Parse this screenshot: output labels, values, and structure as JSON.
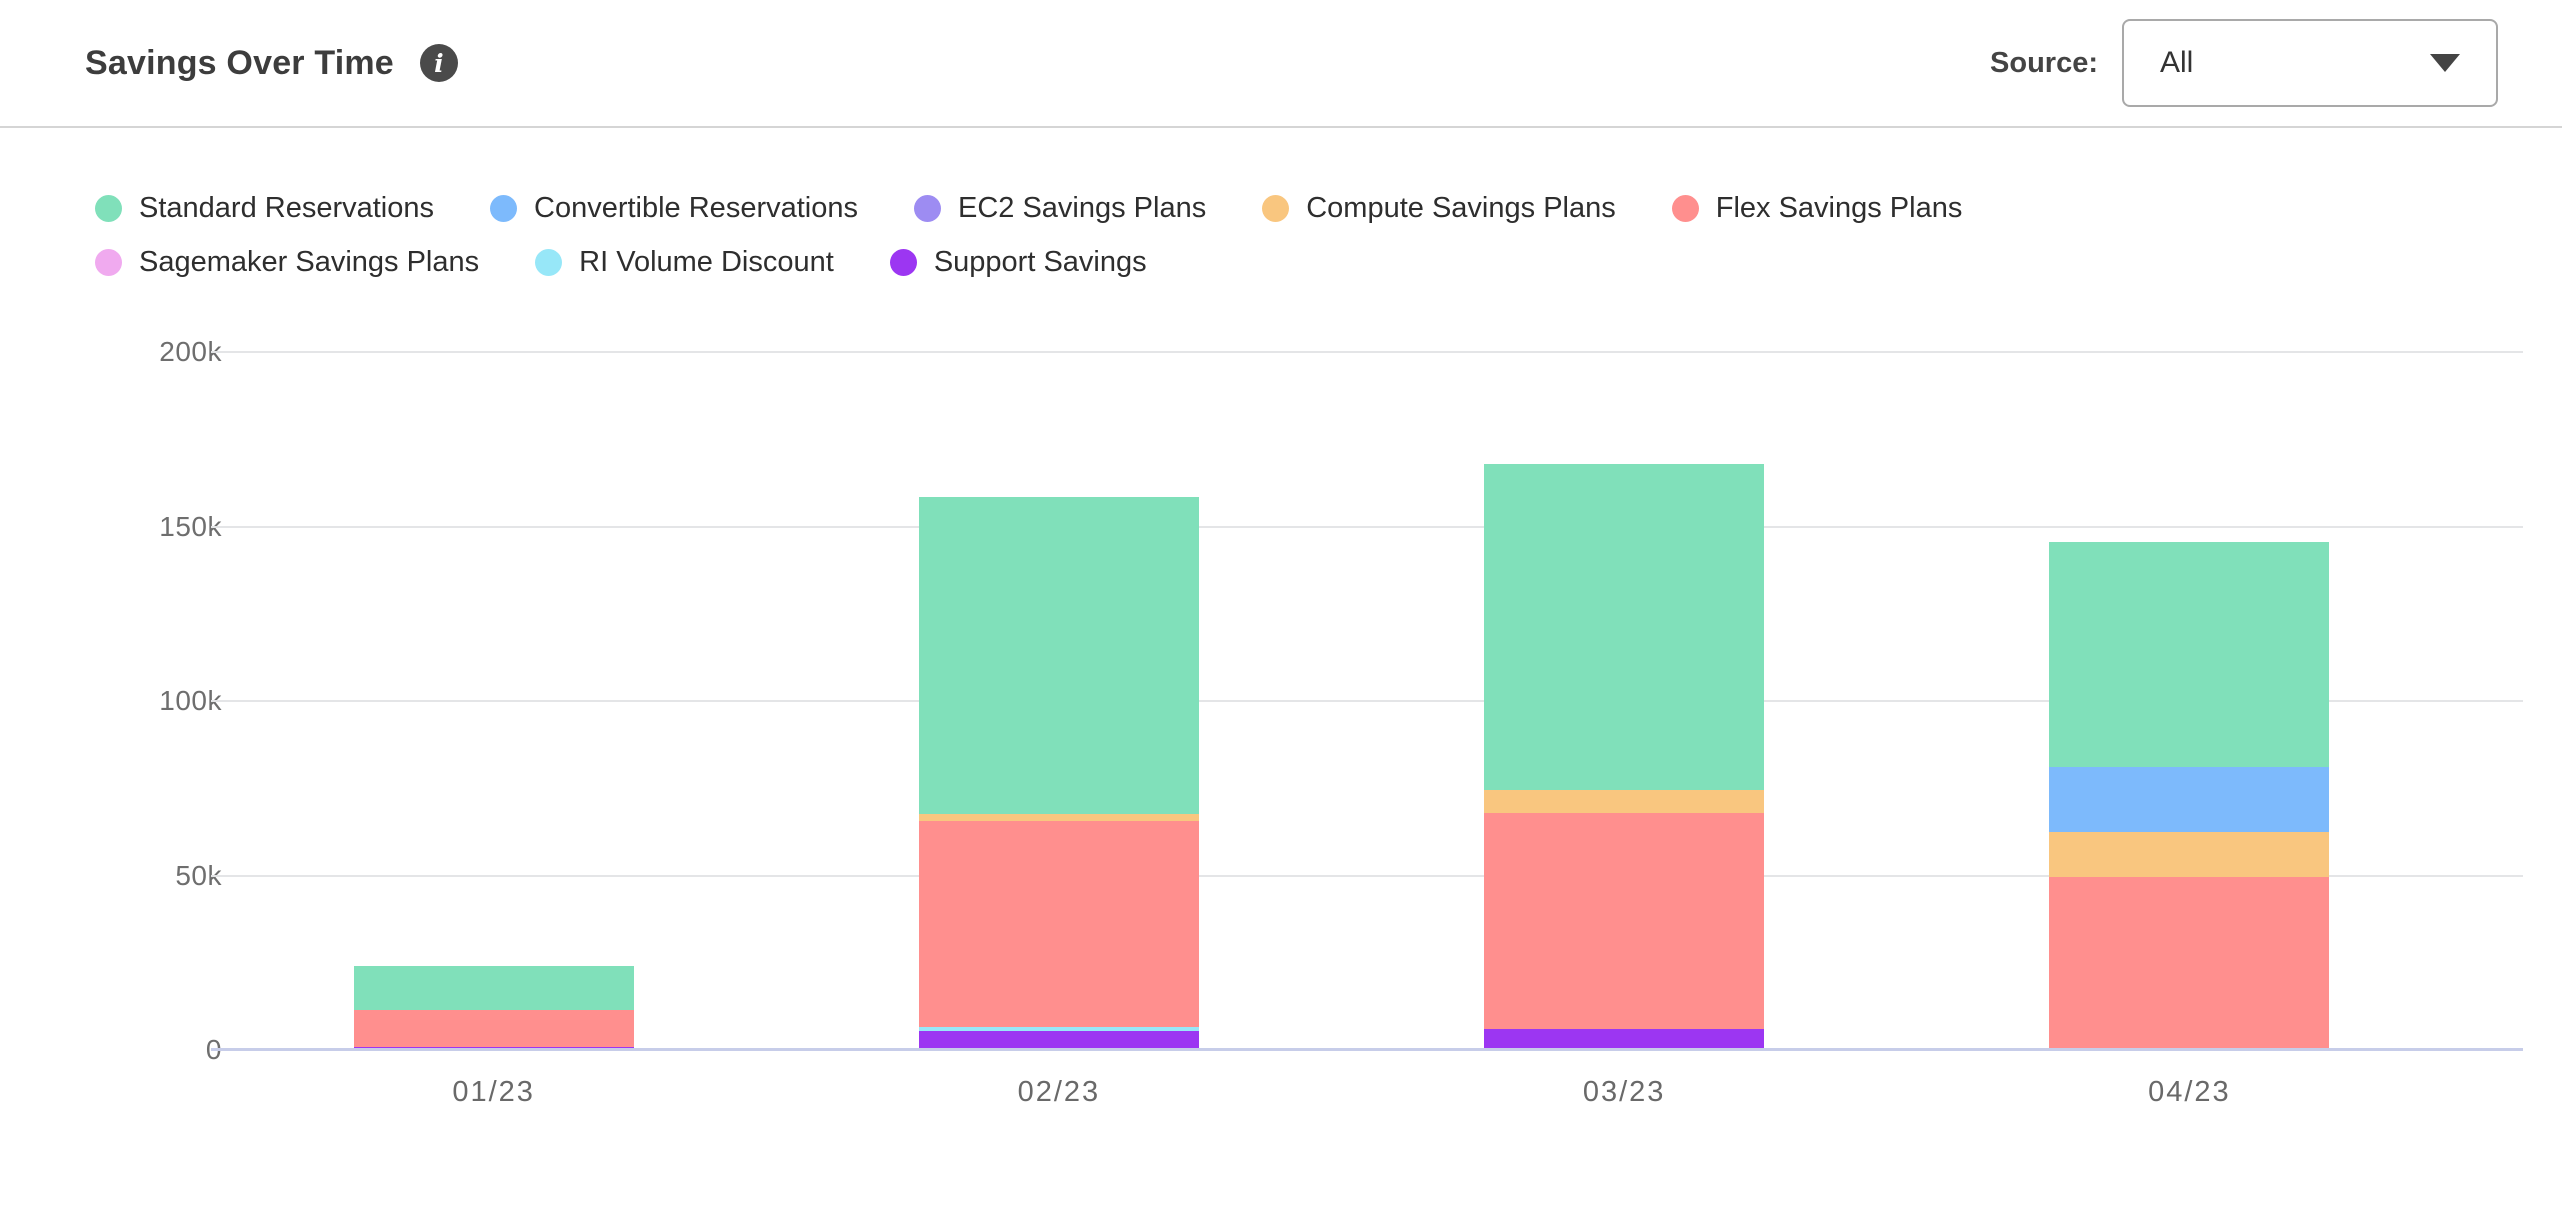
{
  "header": {
    "title": "Savings Over Time",
    "info_glyph": "i",
    "source_label": "Source:",
    "source_value": "All"
  },
  "chart_data": {
    "type": "bar",
    "stacked": true,
    "title": "Savings Over Time",
    "categories": [
      "01/23",
      "02/23",
      "03/23",
      "04/23"
    ],
    "ylim": [
      0,
      200000
    ],
    "yticks": [
      0,
      50000,
      100000,
      150000,
      200000
    ],
    "ytick_labels": [
      "0",
      "50k",
      "100k",
      "150k",
      "200k"
    ],
    "grid": "horizontal",
    "legend_position": "top",
    "series": [
      {
        "name": "Standard Reservations",
        "color": "#80E0BA",
        "values": [
          12500,
          91000,
          93500,
          64500
        ]
      },
      {
        "name": "Convertible Reservations",
        "color": "#7DBAFC",
        "values": [
          0,
          0,
          0,
          18500
        ]
      },
      {
        "name": "EC2 Savings Plans",
        "color": "#9D8CF2",
        "values": [
          0,
          0,
          0,
          0
        ]
      },
      {
        "name": "Compute Savings Plans",
        "color": "#F9C67F",
        "values": [
          0,
          2000,
          6500,
          13000
        ]
      },
      {
        "name": "Flex Savings Plans",
        "color": "#FF8F8E",
        "values": [
          10500,
          59000,
          62000,
          49500
        ]
      },
      {
        "name": "Sagemaker Savings Plans",
        "color": "#F0AAEF",
        "values": [
          0,
          0,
          0,
          0
        ]
      },
      {
        "name": "RI Volume Discount",
        "color": "#97E7F8",
        "values": [
          0,
          1000,
          0,
          0
        ]
      },
      {
        "name": "Support Savings",
        "color": "#9C36F2",
        "values": [
          1000,
          5500,
          6000,
          0
        ]
      }
    ],
    "stack_order_bottom_to_top": [
      "Support Savings",
      "RI Volume Discount",
      "Sagemaker Savings Plans",
      "Flex Savings Plans",
      "Compute Savings Plans",
      "EC2 Savings Plans",
      "Convertible Reservations",
      "Standard Reservations"
    ],
    "colors": {
      "gridline": "#E4E5E7",
      "baseline": "#C7CDE9",
      "tick_text": "#6E6E6E"
    }
  }
}
